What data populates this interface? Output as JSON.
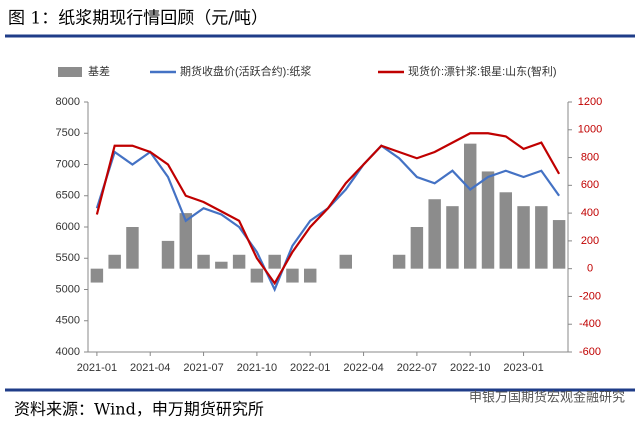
{
  "chart_data": {
    "type": "combo",
    "title": "图 1：纸浆期现行情回顾（元/吨）",
    "source": "资料来源：Wind，申万期货研究所",
    "watermark": "申银万国期货宏观金融研究",
    "x": [
      "2021-01",
      "2021-02",
      "2021-03",
      "2021-04",
      "2021-05",
      "2021-06",
      "2021-07",
      "2021-08",
      "2021-09",
      "2021-10",
      "2021-11",
      "2021-12",
      "2022-01",
      "2022-02",
      "2022-03",
      "2022-04",
      "2022-05",
      "2022-06",
      "2022-07",
      "2022-08",
      "2022-09",
      "2022-10",
      "2022-11",
      "2022-12",
      "2023-01",
      "2023-02",
      "2023-03"
    ],
    "xticks": [
      "2021-01",
      "2021-04",
      "2021-07",
      "2021-10",
      "2022-01",
      "2022-04",
      "2022-07",
      "2022-10",
      "2023-01"
    ],
    "ylim": [
      4000,
      8000
    ],
    "yticks": [
      4000,
      4500,
      5000,
      5500,
      6000,
      6500,
      7000,
      7500,
      8000
    ],
    "y2lim": [
      -600,
      1200
    ],
    "y2ticks": [
      -600,
      -400,
      -200,
      0,
      200,
      400,
      600,
      800,
      1000,
      1200
    ],
    "y2color": "#c00000",
    "series": [
      {
        "name": "基差",
        "type": "bar",
        "axis": "y2",
        "color": "#8c8c8c",
        "values": [
          -100,
          100,
          300,
          0,
          200,
          400,
          100,
          50,
          100,
          -100,
          100,
          -100,
          -100,
          0,
          100,
          0,
          0,
          100,
          300,
          500,
          450,
          900,
          700,
          550,
          450,
          450,
          350
        ]
      },
      {
        "name": "期货收盘价(活跃合约):纸浆",
        "type": "line",
        "color": "#4472c4",
        "values": [
          6300,
          7200,
          7000,
          7200,
          6800,
          6100,
          6300,
          6200,
          6000,
          5600,
          5000,
          5700,
          6100,
          6300,
          6600,
          7000,
          7300,
          7100,
          6800,
          6700,
          6900,
          6600,
          6800,
          6900,
          6800,
          6900,
          6500
        ]
      },
      {
        "name": "现货价:漂针浆:银星:山东(智利)",
        "type": "line",
        "color": "#c00000",
        "values": [
          6200,
          7300,
          7300,
          7200,
          7000,
          6500,
          6400,
          6250,
          6100,
          5500,
          5100,
          5600,
          6000,
          6300,
          6700,
          7000,
          7300,
          7200,
          7100,
          7200,
          7350,
          7500,
          7500,
          7450,
          7250,
          7350,
          6850
        ]
      }
    ]
  }
}
